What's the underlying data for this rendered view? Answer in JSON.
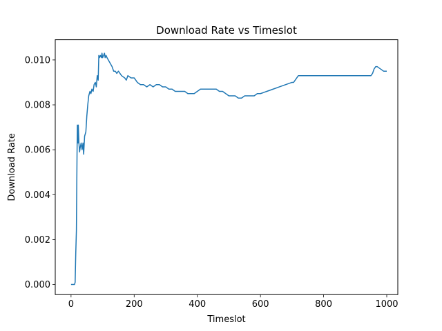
{
  "chart_data": {
    "type": "line",
    "title": "Download Rate vs Timeslot",
    "xlabel": "Timeslot",
    "ylabel": "Download Rate",
    "xlim": [
      -50,
      1035
    ],
    "ylim": [
      -0.00045,
      0.0109
    ],
    "xticks": [
      0,
      200,
      400,
      600,
      800,
      1000
    ],
    "yticks": [
      0.0,
      0.002,
      0.004,
      0.006,
      0.008,
      0.01
    ],
    "xtick_labels": [
      "0",
      "200",
      "400",
      "600",
      "800",
      "1000"
    ],
    "ytick_labels": [
      "0.000",
      "0.002",
      "0.004",
      "0.006",
      "0.008",
      "0.010"
    ],
    "grid": false,
    "series": [
      {
        "color": "#1f77b4",
        "x": [
          0,
          8,
          11,
          13,
          15,
          17,
          19,
          20,
          22,
          23,
          25,
          27,
          29,
          32,
          35,
          38,
          40,
          43,
          47,
          50,
          53,
          56,
          60,
          63,
          66,
          70,
          73,
          77,
          80,
          83,
          86,
          88,
          90,
          93,
          96,
          98,
          100,
          103,
          106,
          108,
          111,
          114,
          118,
          122,
          126,
          130,
          135,
          140,
          145,
          150,
          160,
          170,
          175,
          180,
          190,
          200,
          210,
          220,
          230,
          240,
          250,
          260,
          270,
          280,
          290,
          300,
          310,
          320,
          330,
          340,
          350,
          360,
          370,
          380,
          390,
          400,
          410,
          420,
          430,
          440,
          450,
          460,
          470,
          480,
          490,
          500,
          510,
          520,
          530,
          540,
          550,
          560,
          570,
          580,
          590,
          600,
          620,
          640,
          660,
          680,
          700,
          705,
          710,
          715,
          720,
          730,
          740,
          760,
          780,
          800,
          820,
          840,
          860,
          880,
          900,
          920,
          940,
          950,
          955,
          960,
          965,
          970,
          980,
          990,
          1000
        ],
        "y": [
          0.0,
          0.0,
          0.0,
          0.0001,
          0.0014,
          0.0024,
          0.0058,
          0.0071,
          0.0063,
          0.0071,
          0.0063,
          0.0059,
          0.0061,
          0.0063,
          0.006,
          0.0063,
          0.0058,
          0.0066,
          0.0068,
          0.0075,
          0.008,
          0.0084,
          0.0086,
          0.0085,
          0.0087,
          0.0086,
          0.0089,
          0.009,
          0.0088,
          0.0093,
          0.0091,
          0.0102,
          0.0101,
          0.0102,
          0.0101,
          0.0103,
          0.0101,
          0.0102,
          0.0103,
          0.0101,
          0.0102,
          0.0101,
          0.01,
          0.0099,
          0.0098,
          0.0097,
          0.0095,
          0.0095,
          0.0094,
          0.0095,
          0.0093,
          0.0092,
          0.0091,
          0.0093,
          0.0092,
          0.0092,
          0.009,
          0.0089,
          0.0089,
          0.0088,
          0.0089,
          0.0088,
          0.0089,
          0.0089,
          0.0088,
          0.0088,
          0.0087,
          0.0087,
          0.0086,
          0.0086,
          0.0086,
          0.0086,
          0.0085,
          0.0085,
          0.0085,
          0.0086,
          0.0087,
          0.0087,
          0.0087,
          0.0087,
          0.0087,
          0.0087,
          0.0086,
          0.0086,
          0.0085,
          0.0084,
          0.0084,
          0.0084,
          0.0083,
          0.0083,
          0.0084,
          0.0084,
          0.0084,
          0.0084,
          0.0085,
          0.0085,
          0.0086,
          0.0087,
          0.0088,
          0.0089,
          0.009,
          0.009,
          0.0091,
          0.0092,
          0.0093,
          0.0093,
          0.0093,
          0.0093,
          0.0093,
          0.0093,
          0.0093,
          0.0093,
          0.0093,
          0.0093,
          0.0093,
          0.0093,
          0.0093,
          0.0093,
          0.0094,
          0.0096,
          0.0097,
          0.0097,
          0.0096,
          0.0095,
          0.0095
        ]
      }
    ]
  }
}
